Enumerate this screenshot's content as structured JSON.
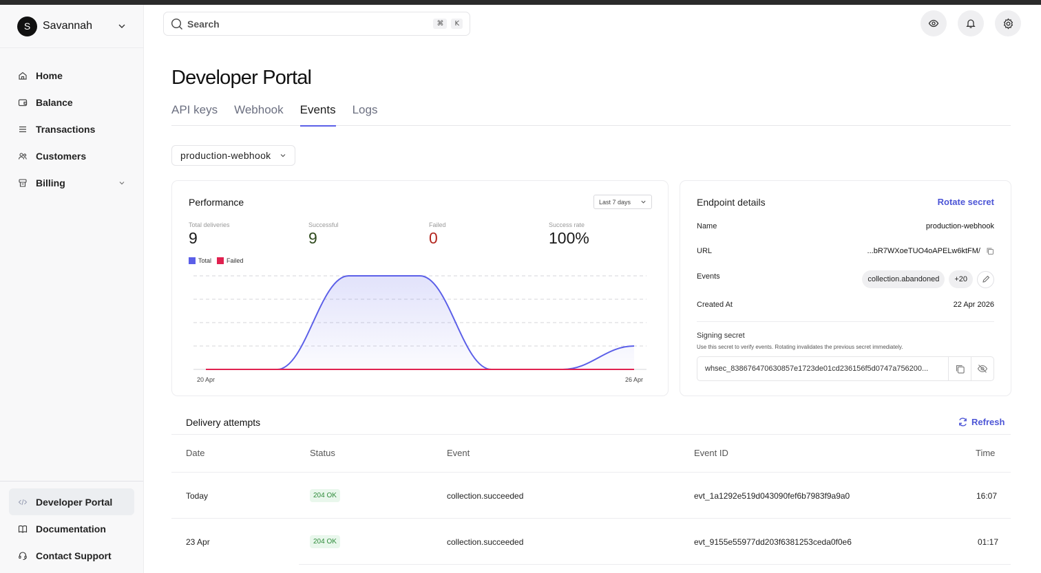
{
  "account": {
    "initial": "S",
    "name": "Savannah"
  },
  "nav": {
    "items": [
      {
        "label": "Home",
        "icon": "home-icon"
      },
      {
        "label": "Balance",
        "icon": "wallet-icon"
      },
      {
        "label": "Transactions",
        "icon": "list-icon"
      },
      {
        "label": "Customers",
        "icon": "users-icon"
      },
      {
        "label": "Billing",
        "icon": "billing-icon"
      }
    ],
    "bottom": [
      {
        "label": "Developer Portal",
        "icon": "code-icon"
      },
      {
        "label": "Documentation",
        "icon": "book-icon"
      },
      {
        "label": "Contact Support",
        "icon": "support-icon"
      }
    ]
  },
  "header": {
    "search_placeholder": "Search",
    "shortcut_mod": "⌘",
    "shortcut_key": "K"
  },
  "page": {
    "title": "Developer Portal",
    "tabs": [
      "API keys",
      "Webhook",
      "Events",
      "Logs"
    ],
    "active_tab": "Events",
    "webhook_select": "production-webhook"
  },
  "performance": {
    "title": "Performance",
    "range": "Last 7 days",
    "stats": [
      {
        "label": "Total deliveries",
        "value": "9"
      },
      {
        "label": "Successful",
        "value": "9"
      },
      {
        "label": "Failed",
        "value": "0"
      },
      {
        "label": "Success rate",
        "value": "100%"
      }
    ]
  },
  "chart_data": {
    "type": "area",
    "x": [
      "20 Apr",
      "21 Apr",
      "22 Apr",
      "23 Apr",
      "24 Apr",
      "25 Apr",
      "26 Apr"
    ],
    "tick_labels": [
      "20 Apr",
      "26 Apr"
    ],
    "series": [
      {
        "name": "Total",
        "values": [
          0,
          0,
          4,
          4,
          0,
          0,
          1
        ],
        "color": "#5b5fe8"
      },
      {
        "name": "Failed",
        "values": [
          0,
          0,
          0,
          0,
          0,
          0,
          0
        ],
        "color": "#e0214f"
      }
    ],
    "ylim": [
      0,
      4
    ],
    "grid": true,
    "legend": "top-left"
  },
  "endpoint": {
    "title": "Endpoint details",
    "rotate": "Rotate secret",
    "name_label": "Name",
    "name_value": "production-webhook",
    "url_label": "URL",
    "url_value": "...bR7WXoeTUO4oAPELw6ktFM/",
    "events_label": "Events",
    "events_chip": "collection.abandoned",
    "events_more": "+20",
    "created_label": "Created At",
    "created_value": "22 Apr 2026",
    "signing_title": "Signing secret",
    "signing_sub": "Use this secret to verify events. Rotating invalidates the previous secret immediately.",
    "secret_value": "whsec_838676470630857e1723de01cd236156f5d0747a756200..."
  },
  "deliveries": {
    "title": "Delivery attempts",
    "refresh": "Refresh",
    "columns": [
      "Date",
      "Status",
      "Event",
      "Event ID",
      "Time"
    ],
    "rows": [
      {
        "date": "Today",
        "status": "204 OK",
        "event": "collection.succeeded",
        "event_id": "evt_1a1292e519d043090fef6b7983f9a9a0",
        "time": "16:07"
      },
      {
        "date": "23 Apr",
        "status": "204 OK",
        "event": "collection.succeeded",
        "event_id": "evt_9155e55977dd203f6381253ceda0f0e6",
        "time": "01:17"
      }
    ]
  },
  "colors": {
    "accent": "#5b5fe8",
    "link": "#4c55d6",
    "success": "#2e8b3a",
    "failed_value": "#b3261e",
    "successful_value": "#2f4a1e"
  }
}
